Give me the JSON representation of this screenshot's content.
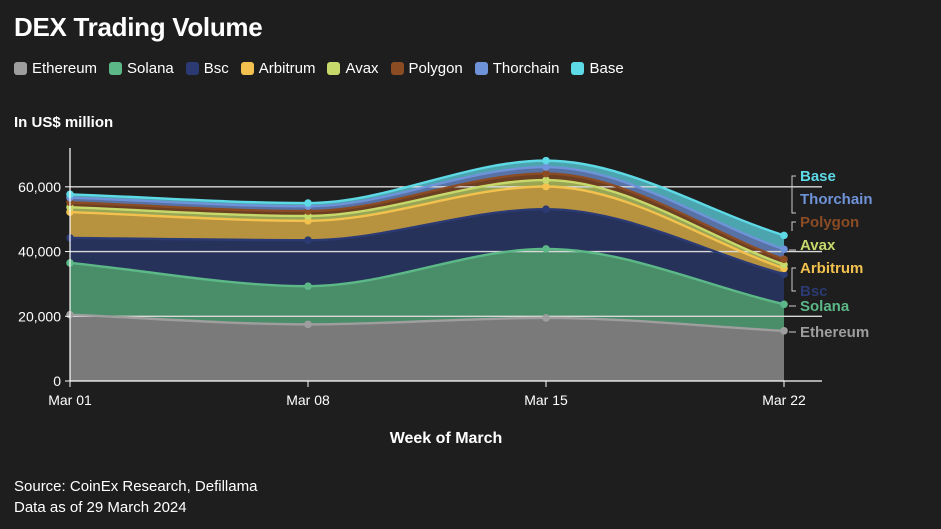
{
  "title": "DEX Trading Volume",
  "unit_label": "In US$ million",
  "source_line1": "Source: CoinEx Research, Defillama",
  "source_line2": "Data as of 29 March 2024",
  "chart_data": {
    "type": "area",
    "stacked": true,
    "title": "DEX Trading Volume",
    "xlabel": "Week of March",
    "ylabel": "In US$ million",
    "categories": [
      "Mar 01",
      "Mar 08",
      "Mar 15",
      "Mar 22"
    ],
    "ylim": [
      0,
      72000
    ],
    "yticks": [
      0,
      20000,
      40000,
      60000
    ],
    "ytick_labels": [
      "0",
      "20,000",
      "40,000",
      "60,000"
    ],
    "grid": "horizontal",
    "legend_position": "top-left",
    "series": [
      {
        "name": "Ethereum",
        "color": "#9e9e9e",
        "values": [
          20500,
          17500,
          19500,
          15500
        ]
      },
      {
        "name": "Solana",
        "color": "#5cb887",
        "values": [
          16000,
          11800,
          21300,
          8200
        ]
      },
      {
        "name": "Bsc",
        "color": "#2b3a72",
        "values": [
          7700,
          14200,
          12300,
          9300
        ]
      },
      {
        "name": "Arbitrum",
        "color": "#f2c14e",
        "values": [
          8000,
          6000,
          7000,
          1800
        ]
      },
      {
        "name": "Avax",
        "color": "#c7d96b",
        "values": [
          1500,
          1500,
          2000,
          1200
        ]
      },
      {
        "name": "Polygon",
        "color": "#8b4c24",
        "values": [
          1500,
          1500,
          2000,
          1600
        ]
      },
      {
        "name": "Thorchain",
        "color": "#6f93d9",
        "values": [
          1500,
          1500,
          2000,
          3100
        ]
      },
      {
        "name": "Base",
        "color": "#5ed9e6",
        "values": [
          1000,
          1000,
          2000,
          4300
        ]
      }
    ]
  }
}
